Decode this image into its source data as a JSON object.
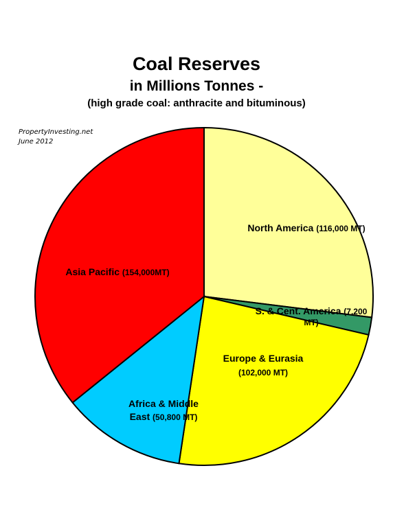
{
  "title": "Coal Reserves",
  "subtitle": "in Millions Tonnes -",
  "subtitle2": "(high grade coal: anthracite and bituminous)",
  "source": {
    "line1": "PropertyInvesting.net",
    "line2": "June 2012"
  },
  "chart_data": {
    "type": "pie",
    "title": "Coal Reserves",
    "unit": "MT",
    "start_angle_deg": 0,
    "direction": "clockwise",
    "slices": [
      {
        "name": "North America",
        "value": 116000,
        "color": "#ffff99",
        "lines": [
          {
            "name": "North America ",
            "value": "(116,000  MT)"
          }
        ]
      },
      {
        "name": "S. & Cent. America",
        "value": 7200,
        "color": "#339966",
        "lines": [
          {
            "name": "S. & Cent. America ",
            "value": "(7,200"
          },
          {
            "name": "",
            "value": "MT)"
          }
        ]
      },
      {
        "name": "Europe & Eurasia",
        "value": 102000,
        "color": "#ffff00",
        "lines": [
          {
            "name": "Europe & Eurasia",
            "value": ""
          },
          {
            "name": "",
            "value": "(102,000  MT)"
          }
        ]
      },
      {
        "name": "Africa & Middle East",
        "value": 50800,
        "color": "#00ccff",
        "lines": [
          {
            "name": "Africa & Middle",
            "value": ""
          },
          {
            "name": "East ",
            "value": "(50,800  MT)"
          }
        ]
      },
      {
        "name": "Asia Pacific",
        "value": 154000,
        "color": "#ff0000",
        "lines": [
          {
            "name": "Asia Pacific ",
            "value": "(154,000MT)"
          }
        ]
      }
    ]
  }
}
